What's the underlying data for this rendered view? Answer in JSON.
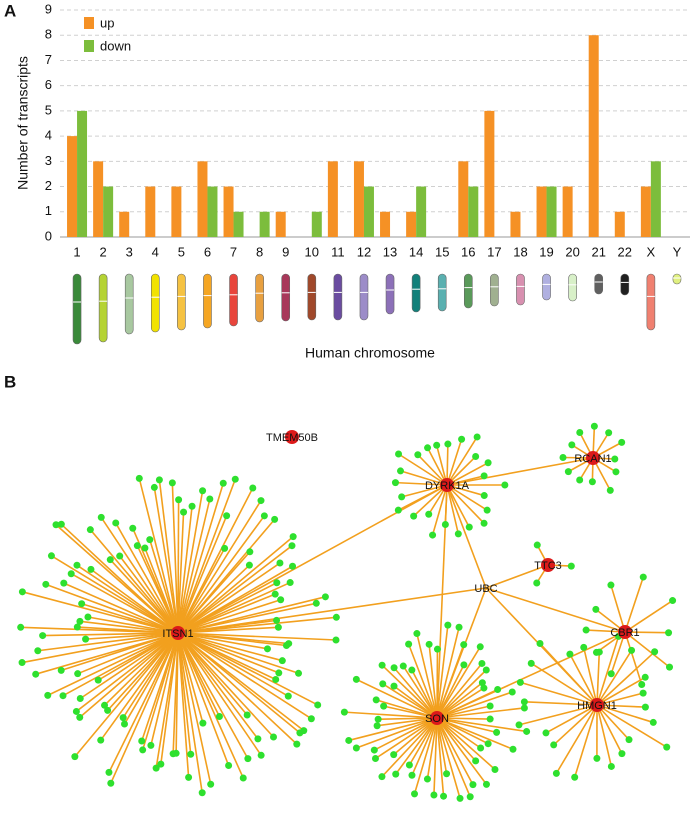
{
  "panel_labels": [
    "A",
    "B"
  ],
  "chart_data": {
    "type": "bar",
    "y_label": "Number of transcripts",
    "x_label": "Human chromosome",
    "categories": [
      "1",
      "2",
      "3",
      "4",
      "5",
      "6",
      "7",
      "8",
      "9",
      "10",
      "11",
      "12",
      "13",
      "14",
      "15",
      "16",
      "17",
      "18",
      "19",
      "20",
      "21",
      "22",
      "X",
      "Y"
    ],
    "series": [
      {
        "name": "up",
        "color": "#f59125",
        "values": [
          4,
          3,
          1,
          2,
          2,
          3,
          2,
          0,
          1,
          0,
          3,
          3,
          1,
          1,
          0,
          3,
          5,
          1,
          2,
          2,
          8,
          1,
          2,
          0
        ]
      },
      {
        "name": "down",
        "color": "#7cbd3c",
        "values": [
          5,
          2,
          0,
          0,
          0,
          2,
          1,
          1,
          0,
          1,
          0,
          2,
          0,
          2,
          0,
          2,
          0,
          0,
          2,
          0,
          0,
          0,
          3,
          0
        ]
      }
    ],
    "ylim": [
      0,
      9
    ],
    "yticks": [
      0,
      1,
      2,
      3,
      4,
      5,
      6,
      7,
      8,
      9
    ],
    "grid": true,
    "legend": "upper left"
  },
  "network": {
    "nodes": [
      {
        "label": "TMEM50B"
      },
      {
        "label": "DYRK1A"
      },
      {
        "label": "RCAN1"
      },
      {
        "label": "TTC3"
      },
      {
        "label": "UBC"
      },
      {
        "label": "CBR1"
      },
      {
        "label": "ITSN1"
      },
      {
        "label": "SON"
      },
      {
        "label": "HMGN1"
      }
    ]
  }
}
